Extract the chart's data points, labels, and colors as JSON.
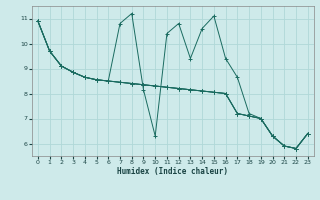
{
  "background_color": "#ceeaea",
  "grid_color": "#b0d8d8",
  "line_color": "#1a6b60",
  "xlabel": "Humidex (Indice chaleur)",
  "xlim": [
    -0.5,
    23.5
  ],
  "ylim": [
    5.5,
    11.5
  ],
  "yticks": [
    6,
    7,
    8,
    9,
    10,
    11
  ],
  "xticks": [
    0,
    1,
    2,
    3,
    4,
    5,
    6,
    7,
    8,
    9,
    10,
    11,
    12,
    13,
    14,
    15,
    16,
    17,
    18,
    19,
    20,
    21,
    22,
    23
  ],
  "series": [
    [
      10.9,
      9.7,
      9.1,
      8.85,
      8.65,
      8.55,
      8.5,
      8.45,
      8.4,
      8.35,
      8.3,
      8.25,
      8.2,
      8.15,
      8.1,
      8.05,
      8.0,
      7.2,
      7.1,
      7.0,
      6.3,
      5.9,
      5.8,
      6.4
    ],
    [
      10.9,
      9.7,
      9.1,
      8.85,
      8.65,
      8.55,
      8.5,
      10.8,
      11.2,
      8.15,
      6.3,
      10.4,
      10.8,
      9.4,
      10.6,
      11.1,
      9.4,
      8.65,
      7.2,
      7.0,
      6.3,
      5.9,
      5.8,
      6.4
    ],
    [
      10.9,
      9.7,
      9.1,
      8.85,
      8.65,
      8.55,
      8.5,
      8.45,
      8.4,
      8.35,
      8.3,
      8.25,
      8.2,
      8.15,
      8.1,
      8.05,
      8.0,
      7.2,
      7.1,
      7.0,
      6.3,
      5.9,
      5.8,
      6.4
    ],
    [
      10.9,
      9.7,
      9.1,
      8.85,
      8.65,
      8.55,
      8.5,
      8.45,
      8.4,
      8.35,
      8.3,
      8.25,
      8.2,
      8.15,
      8.1,
      8.05,
      8.0,
      7.2,
      7.1,
      7.0,
      6.3,
      5.9,
      5.8,
      6.4
    ]
  ]
}
